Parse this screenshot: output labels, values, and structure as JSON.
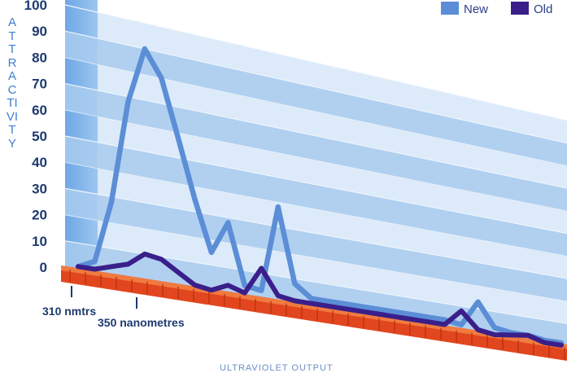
{
  "chart_data": {
    "type": "line",
    "ylabel": "ATTRACTIVITY",
    "xlabel": "ULTRAVIOLET OUTPUT",
    "ylim": [
      0,
      100
    ],
    "yticks": [
      "0",
      "10",
      "20",
      "30",
      "40",
      "50",
      "60",
      "70",
      "80",
      "90",
      "100"
    ],
    "xtick_labels": [
      "310 nmtrs",
      "350 nanometres"
    ],
    "legend_position": "top-right",
    "x": [
      1,
      2,
      3,
      4,
      5,
      6,
      7,
      8,
      9,
      10,
      11,
      12,
      13,
      14,
      15,
      16,
      17,
      18,
      19,
      20,
      21,
      22,
      23,
      24,
      25,
      26,
      27,
      28,
      29,
      30
    ],
    "series": [
      {
        "name": "New",
        "color": "#5b8ed6",
        "values": [
          1,
          4,
          28,
          68,
          90,
          80,
          58,
          35,
          15,
          28,
          4,
          3,
          38,
          8,
          3,
          3,
          3,
          3,
          3,
          3,
          3,
          3,
          3,
          2,
          13,
          3,
          2,
          2,
          1,
          1
        ]
      },
      {
        "name": "Old",
        "color": "#3a1f8a",
        "values": [
          1,
          1,
          3,
          5,
          10,
          9,
          5,
          1,
          0,
          3,
          1,
          12,
          2,
          1,
          1,
          1,
          1,
          1,
          1,
          1,
          1,
          1,
          1,
          8,
          1,
          0,
          1,
          2,
          0,
          0
        ]
      }
    ]
  }
}
